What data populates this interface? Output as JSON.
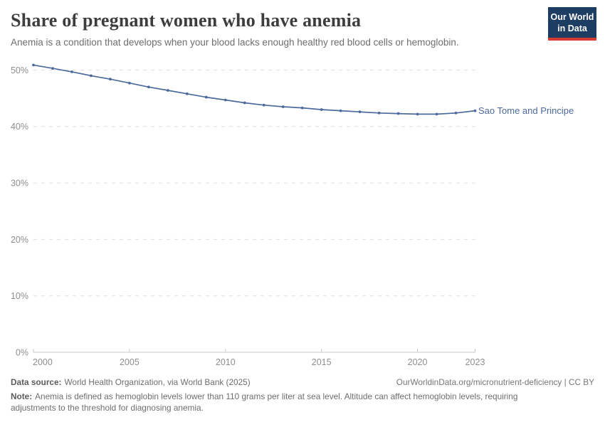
{
  "header": {
    "title": "Share of pregnant women who have anemia",
    "subtitle": "Anemia is a condition that develops when your blood lacks enough healthy red blood cells or hemoglobin.",
    "logo_line1": "Our World",
    "logo_line2": "in Data"
  },
  "chart_data": {
    "type": "line",
    "title": "Share of pregnant women who have anemia",
    "x": [
      2000,
      2001,
      2002,
      2003,
      2004,
      2005,
      2006,
      2007,
      2008,
      2009,
      2010,
      2011,
      2012,
      2013,
      2014,
      2015,
      2016,
      2017,
      2018,
      2019,
      2020,
      2021,
      2022,
      2023
    ],
    "series": [
      {
        "name": "Sao Tome and Principe",
        "color": "#4c6a9c",
        "values": [
          50.9,
          50.3,
          49.7,
          49.0,
          48.4,
          47.7,
          47.0,
          46.4,
          45.8,
          45.2,
          44.7,
          44.2,
          43.8,
          43.5,
          43.3,
          43.0,
          42.8,
          42.6,
          42.4,
          42.3,
          42.2,
          42.2,
          42.4,
          42.8
        ]
      }
    ],
    "xlabel": "",
    "ylabel": "",
    "x_ticks": [
      2000,
      2005,
      2010,
      2015,
      2020,
      2023
    ],
    "y_ticks": [
      0,
      10,
      20,
      30,
      40,
      50
    ],
    "y_tick_suffix": "%",
    "ylim": [
      0,
      52
    ],
    "xlim": [
      2000,
      2023
    ],
    "grid": "horizontal-dashed",
    "legend_position": "line-end-label"
  },
  "colors": {
    "line": "#4c6a9c",
    "grid": "#dedede",
    "axis": "#c8c8c8",
    "tick_label": "#8e8e8e",
    "logo_bg": "#1d3d63",
    "logo_red": "#d73c32"
  },
  "footer": {
    "datasource_label": "Data source:",
    "datasource_text": "World Health Organization, via World Bank (2025)",
    "link_text": "OurWorldinData.org/micronutrient-deficiency | CC BY",
    "note_label": "Note:",
    "note_text": "Anemia is defined as hemoglobin levels lower than 110 grams per liter at sea level. Altitude can affect hemoglobin levels, requiring adjustments to the threshold for diagnosing anemia."
  }
}
